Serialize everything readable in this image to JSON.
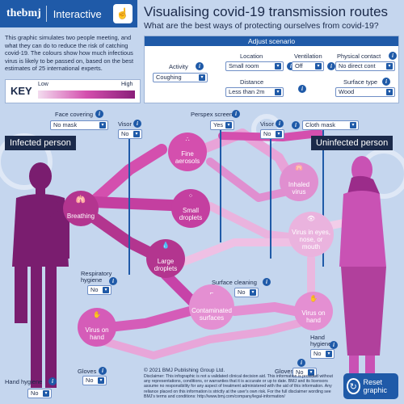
{
  "brand": {
    "logo": "thebmj",
    "app": "Interactive",
    "icon": "hand-pointer-icon"
  },
  "title": "Visualising covid-19 transmission routes",
  "subtitle": "What are the best ways of protecting ourselves from covid-19?",
  "intro": "This graphic simulates two people meeting, and what they can do to reduce the risk of catching covid-19. The colours show how much infectious virus is likely to be passed on, based on the best estimates of 25 international experts.",
  "key": {
    "label": "KEY",
    "low": "Low",
    "high": "High"
  },
  "scenario": {
    "heading": "Adjust scenario",
    "activity": {
      "label": "Activity",
      "value": "Coughing"
    },
    "location": {
      "label": "Location",
      "value": "Small room"
    },
    "ventilation": {
      "label": "Ventilation",
      "value": "Off"
    },
    "physical_contact": {
      "label": "Physical contact",
      "value": "No direct cont"
    },
    "distance": {
      "label": "Distance",
      "value": "Less than 2m"
    },
    "surface_type": {
      "label": "Surface type",
      "value": "Wood"
    }
  },
  "controls": {
    "face_covering": {
      "label": "Face covering",
      "value": "No mask"
    },
    "visor_left": {
      "label": "Visor",
      "value": "No"
    },
    "perspex": {
      "label": "Perspex screen",
      "value": "Yes"
    },
    "visor_right": {
      "label": "Visor",
      "value": "No"
    },
    "cloth_mask": {
      "value": "Cloth mask"
    },
    "respiratory_hygiene": {
      "label": "Respiratory hygiene",
      "value": "No"
    },
    "surface_cleaning": {
      "label": "Surface cleaning",
      "value": "No"
    },
    "hand_hygiene_right": {
      "label": "Hand hygiene",
      "value": "No"
    },
    "gloves_left": {
      "label": "Gloves",
      "value": "No"
    },
    "gloves_right": {
      "label": "Gloves",
      "value": "No"
    },
    "hand_hygiene_left": {
      "label": "Hand hygiene",
      "value": "No"
    }
  },
  "people": {
    "infected": "Infected person",
    "uninfected": "Uninfected person"
  },
  "nodes": {
    "breathing": "Breathing",
    "fine_aerosols": "Fine aerosols",
    "small_droplets": "Small droplets",
    "large_droplets": "Large droplets",
    "inhaled_virus": "Inhaled virus",
    "virus_eyes": "Virus in eyes, nose, or mouth",
    "contaminated_surfaces": "Contaminated surfaces",
    "virus_hand_left": "Virus on hand",
    "virus_hand_right": "Virus on hand"
  },
  "copyright": "© 2021 BMJ Publishing Group Ltd.",
  "footer": "Disclaimer: This infographic is not a validated clinical decision aid. This information is provided without any representations, conditions, or warranties that it is accurate or up to date. BMJ and its licensors assume no responsibility for any aspect of treatment administered with the aid of this information. Any reliance placed on this information is strictly at the user's own risk. For the full disclaimer wording see BMJ's terms and conditions: http://www.bmj.com/company/legal-information/",
  "reset": {
    "label": "Reset graphic",
    "icon": "reset-icon"
  },
  "colors": {
    "brand": "#1f5aa8",
    "navy": "#1b2a4a",
    "flow": "#d44fae",
    "background": "#c5d6ee"
  }
}
